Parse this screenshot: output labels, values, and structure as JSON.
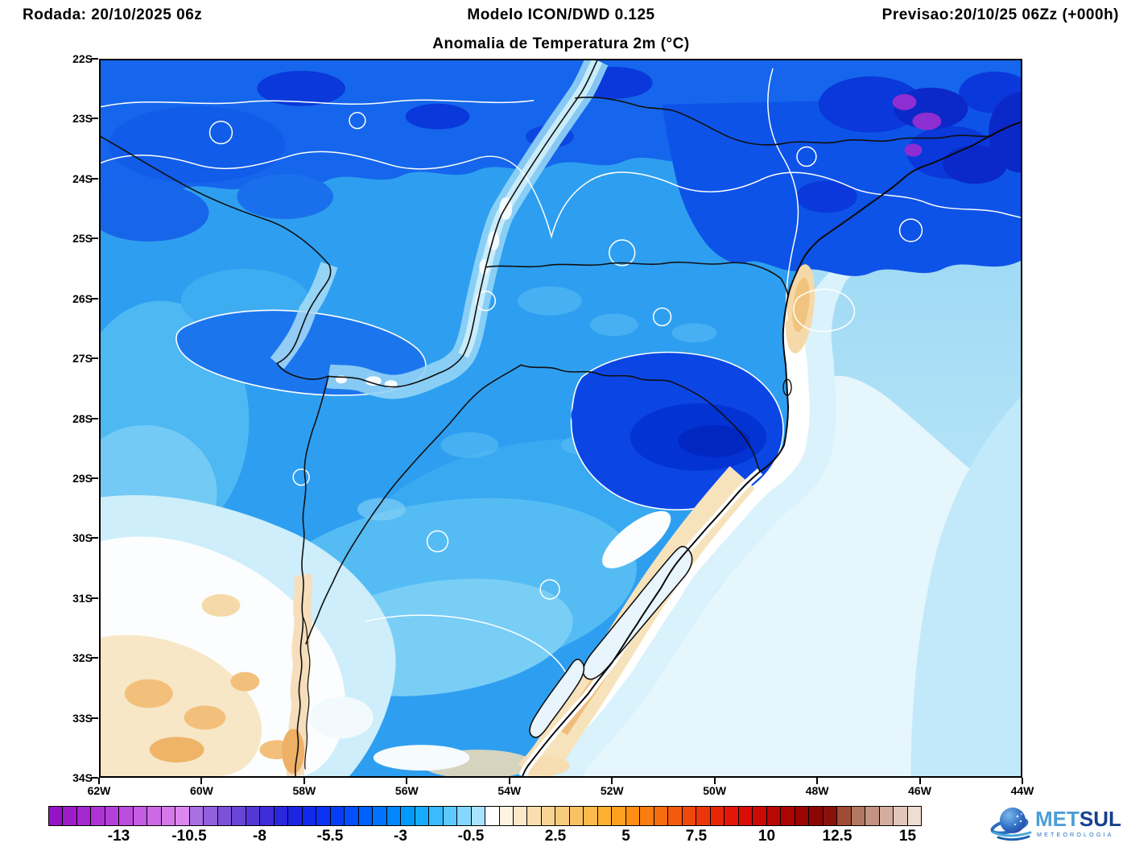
{
  "header": {
    "left": "Rodada: 20/10/2025 06z",
    "center": "Modelo ICON/DWD 0.125",
    "right": "Previsao:20/10/25 06Zz (+000h)"
  },
  "title": "Anomalia de Temperatura 2m (°C)",
  "axes": {
    "lat_labels": [
      "22S",
      "23S",
      "24S",
      "25S",
      "26S",
      "27S",
      "28S",
      "29S",
      "30S",
      "31S",
      "32S",
      "33S",
      "34S"
    ],
    "lon_labels": [
      "62W",
      "60W",
      "58W",
      "56W",
      "54W",
      "52W",
      "50W",
      "48W",
      "46W",
      "44W"
    ]
  },
  "colorbar": {
    "labels": [
      "-13",
      "-10.5",
      "-8",
      "-5.5",
      "-3",
      "-0.5",
      "2.5",
      "5",
      "7.5",
      "10",
      "12.5",
      "15"
    ],
    "label_boundary_indices": [
      5,
      10,
      15,
      20,
      25,
      30,
      36,
      41,
      46,
      51,
      56,
      61
    ],
    "colors": [
      "#9613c4",
      "#9d1cc9",
      "#a527cf",
      "#ad33d4",
      "#b540d9",
      "#bd4ddd",
      "#c55be2",
      "#cd69e6",
      "#d578ea",
      "#dd87ee",
      "#a96fe3",
      "#9260dd",
      "#7d52d8",
      "#6945d5",
      "#5538d4",
      "#3f2cd6",
      "#2b27dd",
      "#1c25e4",
      "#1229ec",
      "#0b32f3",
      "#063ef8",
      "#024ffc",
      "#0061fe",
      "#0074ff",
      "#0087ff",
      "#009aff",
      "#15abff",
      "#38bbff",
      "#5ec9ff",
      "#84d7fe",
      "#a8e3fd",
      "#ffffff",
      "#fdf3e0",
      "#fbe9c8",
      "#f9dfae",
      "#f7d494",
      "#f7cb7c",
      "#f9c364",
      "#fcba4b",
      "#ffb031",
      "#ffa01e",
      "#fe8f14",
      "#fb7d12",
      "#f76b10",
      "#f35a0e",
      "#ef480c",
      "#eb360a",
      "#e72608",
      "#e31706",
      "#da0e05",
      "#cb0a04",
      "#bb0703",
      "#ac0502",
      "#9c0402",
      "#8d0503",
      "#8a100a",
      "#a14a35",
      "#b17862",
      "#c49384",
      "#d5aca0",
      "#e3c6bb",
      "#efddd3"
    ]
  },
  "logo": {
    "name_primary": "MET",
    "name_secondary": "SUL",
    "subtitle": "METEOROLOGIA",
    "primary_color": "#4d9ed6",
    "secondary_color": "#16418c"
  },
  "chart_data": {
    "type": "heatmap",
    "subtype": "filled-contour-map",
    "title": "Anomalia de Temperatura 2m (°C)",
    "model": "ICON/DWD 0.125",
    "run": "20/10/2025 06z",
    "valid": "20/10/25 06Zz (+000h)",
    "lat_ticks": [
      "22S",
      "23S",
      "24S",
      "25S",
      "26S",
      "27S",
      "28S",
      "29S",
      "30S",
      "31S",
      "32S",
      "33S",
      "34S"
    ],
    "lon_ticks": [
      "62W",
      "60W",
      "58W",
      "56W",
      "54W",
      "52W",
      "50W",
      "48W",
      "46W",
      "44W"
    ],
    "lat_range": [
      -34,
      -22
    ],
    "lon_range": [
      -62,
      -44
    ],
    "grid": false,
    "legend_position": "bottom-colorbar",
    "colorbar_levels": {
      "min": -15.5,
      "max": 15.5,
      "step": 0.5
    },
    "colorbar_tick_values": [
      -13,
      -10.5,
      -8,
      -5.5,
      -3,
      -0.5,
      2.5,
      5,
      7.5,
      10,
      12.5,
      15
    ],
    "field_summary": [
      {
        "area": "northern band 22S-24S (SP/PR/MS interior)",
        "anomaly_C": "-5 to -9"
      },
      {
        "area": "top-right corner, RJ/SP coast mountains",
        "anomaly_C": "-9 to -13 with small purple pockets"
      },
      {
        "area": "NE Rio Grande do Sul / Serra 28S-29.5S 50W-52W dark blob",
        "anomaly_C": "-6 to -9"
      },
      {
        "area": "central Paraguay and western Parana",
        "anomaly_C": "-3 to -6"
      },
      {
        "area": "Parana-Paraguay river valleys pale corridor",
        "anomaly_C": "0 to -2"
      },
      {
        "area": "SW corner Argentina/Uruguay and lower Uruguay river",
        "anomaly_C": "0 to +2.5 (cream/orange spots)"
      },
      {
        "area": "coastal Santa Catarina spot near 26.5S 48.7W",
        "anomaly_C": "+0.5 to +2"
      },
      {
        "area": "coastal strip RS lagoons (Patos/Mirim)",
        "anomaly_C": "0 to +2"
      },
      {
        "area": "open ocean offshore",
        "anomaly_C": "-0.5 to -3"
      }
    ]
  }
}
